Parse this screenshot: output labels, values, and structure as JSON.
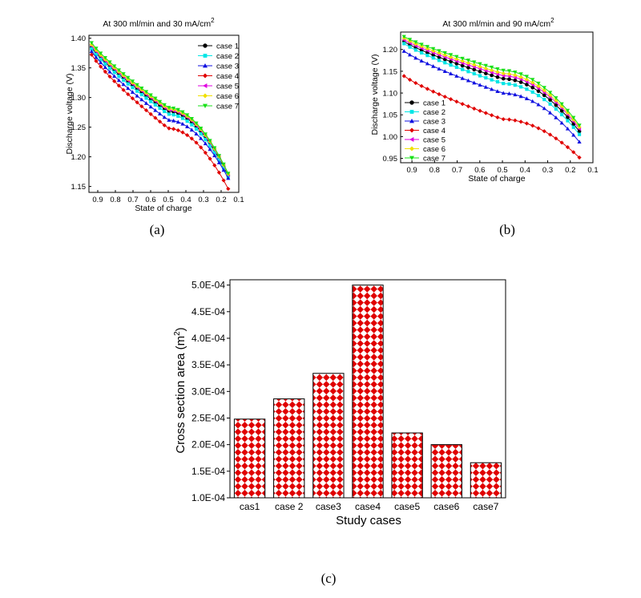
{
  "figure": {
    "caption_a": "(a)",
    "caption_b": "(b)",
    "caption_c": "(c)"
  },
  "chart_data": [
    {
      "type": "line",
      "title": "At 300 ml/min and 30 mA/cm",
      "title_sup": "2",
      "xlabel": "State of charge",
      "ylabel": "Discharge voltage  (V)",
      "xlim": [
        0.95,
        0.1
      ],
      "ylim": [
        1.14,
        1.405
      ],
      "xticks": [
        0.9,
        0.8,
        0.7,
        0.6,
        0.5,
        0.4,
        0.3,
        0.2,
        0.1
      ],
      "xtick_labels": [
        "0.9",
        "0.8",
        "0.7",
        "0.6",
        "0.5",
        "0.4",
        "0.3",
        "0.2",
        "0.1"
      ],
      "yticks": [
        1.15,
        1.2,
        1.25,
        1.3,
        1.35,
        1.4
      ],
      "ytick_labels": [
        "1.15",
        "1.20",
        "1.25",
        "1.30",
        "1.35",
        "1.40"
      ],
      "legend": "top-right",
      "series": [
        {
          "name": "case 1",
          "color": "#000000",
          "marker": "circle",
          "start": 1.392,
          "mid": 1.277,
          "end": 1.168
        },
        {
          "name": "case 2",
          "color": "#00e5e5",
          "marker": "square",
          "start": 1.39,
          "mid": 1.272,
          "end": 1.166
        },
        {
          "name": "case 3",
          "color": "#1010e0",
          "marker": "triangle-up",
          "start": 1.386,
          "mid": 1.262,
          "end": 1.164
        },
        {
          "name": "case 4",
          "color": "#e00000",
          "marker": "diamond",
          "start": 1.381,
          "mid": 1.248,
          "end": 1.146
        },
        {
          "name": "case 5",
          "color": "#e000e0",
          "marker": "triangle-left",
          "start": 1.395,
          "mid": 1.279,
          "end": 1.17
        },
        {
          "name": "case 6",
          "color": "#f0e000",
          "marker": "diamond",
          "start": 1.397,
          "mid": 1.281,
          "end": 1.171
        },
        {
          "name": "case 7",
          "color": "#18e018",
          "marker": "triangle-down",
          "start": 1.4,
          "mid": 1.283,
          "end": 1.172
        }
      ]
    },
    {
      "type": "line",
      "title": "At 300 ml/min and 90 mA/cm",
      "title_sup": "2",
      "xlabel": "State of charge",
      "ylabel": "Discharge voltage  (V)",
      "xlim": [
        0.95,
        0.1
      ],
      "ylim": [
        0.94,
        1.24
      ],
      "xticks": [
        0.9,
        0.8,
        0.7,
        0.6,
        0.5,
        0.4,
        0.3,
        0.2,
        0.1
      ],
      "xtick_labels": [
        "0.9",
        "0.8",
        "0.7",
        "0.6",
        "0.5",
        "0.4",
        "0.3",
        "0.2",
        "0.1"
      ],
      "yticks": [
        0.95,
        1.0,
        1.05,
        1.1,
        1.15,
        1.2
      ],
      "ytick_labels": [
        "0.95",
        "1.00",
        "1.05",
        "1.10",
        "1.15",
        "1.20"
      ],
      "legend": "bottom-left",
      "series": [
        {
          "name": "case 1",
          "color": "#000000",
          "marker": "circle",
          "start": 1.224,
          "mid": 1.133,
          "end": 1.012
        },
        {
          "name": "case 2",
          "color": "#00e5e5",
          "marker": "square",
          "start": 1.22,
          "mid": 1.122,
          "end": 1.005
        },
        {
          "name": "case 3",
          "color": "#1010e0",
          "marker": "triangle-up",
          "start": 1.203,
          "mid": 1.1,
          "end": 0.988
        },
        {
          "name": "case 4",
          "color": "#e00000",
          "marker": "diamond",
          "start": 1.146,
          "mid": 1.04,
          "end": 0.952
        },
        {
          "name": "case 5",
          "color": "#e000e0",
          "marker": "triangle-left",
          "start": 1.228,
          "mid": 1.14,
          "end": 1.018
        },
        {
          "name": "case 6",
          "color": "#f0e000",
          "marker": "diamond",
          "start": 1.232,
          "mid": 1.145,
          "end": 1.022
        },
        {
          "name": "case 7",
          "color": "#18e018",
          "marker": "triangle-down",
          "start": 1.235,
          "mid": 1.152,
          "end": 1.026
        }
      ]
    },
    {
      "type": "bar",
      "title": "",
      "xlabel": "Study cases",
      "ylabel": "Cross section area (m",
      "ylabel_sup": "2",
      "ylabel_end": ")",
      "categories": [
        "cas1",
        "case 2",
        "case3",
        "case4",
        "case5",
        "case6",
        "case7"
      ],
      "values": [
        0.000248,
        0.000286,
        0.000334,
        0.0005,
        0.000222,
        0.0002,
        0.000166
      ],
      "ylim": [
        0.0001,
        0.00051
      ],
      "yticks": [
        0.0001,
        0.00015,
        0.0002,
        0.00025,
        0.0003,
        0.00035,
        0.0004,
        0.00045,
        0.0005
      ],
      "ytick_labels": [
        "1.0E-04",
        "1.5E-04",
        "2.0E-04",
        "2.5E-04",
        "3.0E-04",
        "3.5E-04",
        "4.0E-04",
        "4.5E-04",
        "5.0E-04"
      ],
      "bar_fill": "#e00000",
      "pattern": "checkerboard"
    }
  ]
}
